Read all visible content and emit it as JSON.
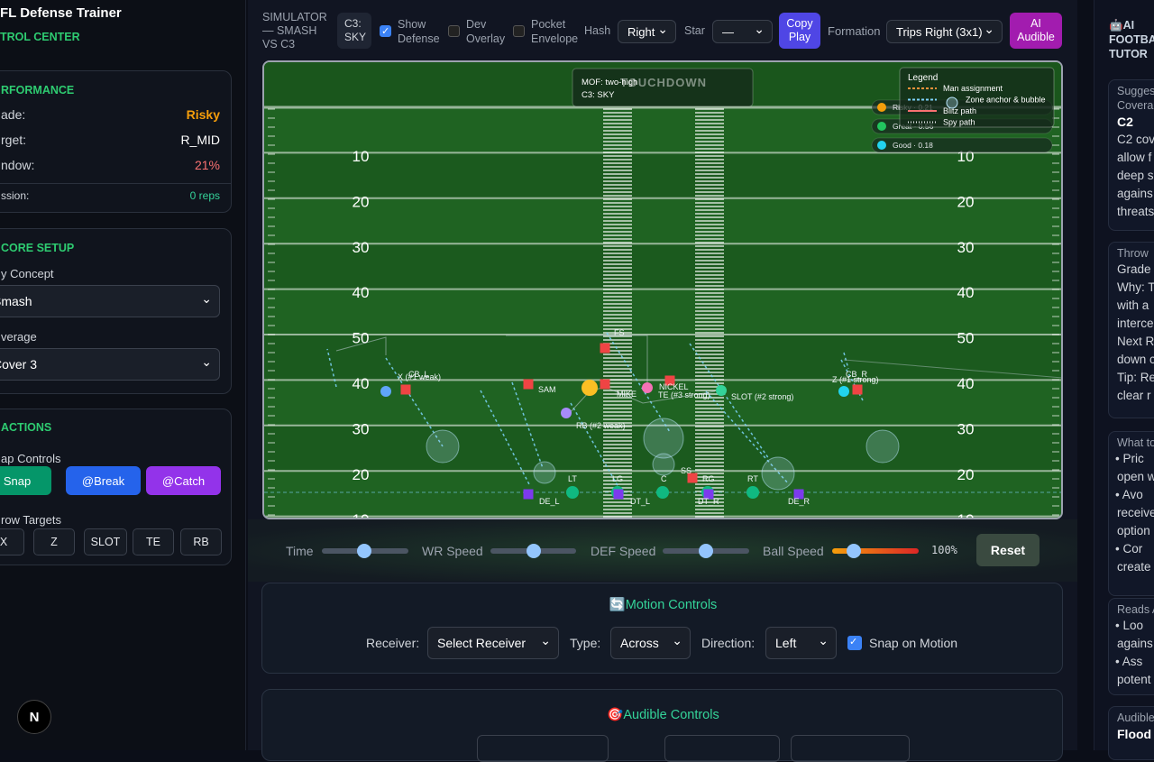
{
  "sidebar": {
    "title": "FL Defense Trainer",
    "subtitle": "TROL CENTER",
    "performance": {
      "heading": "RFORMANCE",
      "rows": [
        {
          "label": "ade:",
          "value": "Risky",
          "color": "#f59e0b"
        },
        {
          "label": "rget:",
          "value": "R_MID",
          "color": "#ffffff"
        },
        {
          "label": "ndow:",
          "value": "21%",
          "color": "#f87171"
        },
        {
          "label": "ssion:",
          "value": "0 reps",
          "color": "#34d399"
        }
      ]
    },
    "setup": {
      "heading": "CORE SETUP",
      "concept_label": "y Concept",
      "concept": "Smash",
      "coverage_label": "verage",
      "coverage": "Cover 3"
    },
    "actions": {
      "heading": "ACTIONS",
      "snap_label": "ap Controls",
      "buttons": [
        {
          "label": "Snap",
          "color": "#059669"
        },
        {
          "label": "@Break",
          "color": "#2563eb"
        },
        {
          "label": "@Catch",
          "color": "#9333ea"
        }
      ],
      "targets_label": "row Targets",
      "targets": [
        "X",
        "Z",
        "SLOT",
        "TE",
        "RB"
      ]
    },
    "badge": "N"
  },
  "toolbar": {
    "title": "SIMULATOR — SMASH VS C3",
    "shell": "C3: SKY",
    "toggles": [
      {
        "label": "Show Defense",
        "checked": true
      },
      {
        "label": "Dev Overlay",
        "checked": false
      },
      {
        "label": "Pocket Envelope",
        "checked": false
      }
    ],
    "hash_label": "Hash",
    "hash": "Right",
    "star_label": "Star",
    "star": "—",
    "copy": "Copy Play",
    "formation_label": "Formation",
    "formation": "Trips Right (3x1)",
    "audible": "AI Audible"
  },
  "field": {
    "end_zone": "TOUCHDOWN",
    "info": [
      "MOF: two-high",
      "C3: SKY"
    ],
    "yard_numbers": [
      10,
      20,
      30,
      40,
      50,
      40,
      30,
      20,
      10
    ],
    "legend": {
      "title": "Legend",
      "items": [
        {
          "label": "Man assignment",
          "color": "#fb923c",
          "dash": "3 2"
        },
        {
          "label": "Zone anchor & bubble",
          "color": "#7dd3fc",
          "dash": "3 2"
        },
        {
          "label": "Blitz path",
          "color": "#f87171",
          "dash": ""
        },
        {
          "label": "Spy path",
          "color": "#e5e7eb",
          "dash": "1 2"
        }
      ]
    },
    "grades": [
      {
        "label": "Risky · 0.21",
        "color": "#f59e0b"
      },
      {
        "label": "Great · 0.56",
        "color": "#22c55e"
      },
      {
        "label": "Good · 0.18",
        "color": "#22d3ee"
      }
    ],
    "players": [
      {
        "label": "X (#1 weak)",
        "color": "#60a5fa",
        "shape": "circle"
      },
      {
        "label": "CB_L",
        "color": "#ef4444",
        "shape": "square"
      },
      {
        "label": "SAM",
        "color": "#ef4444",
        "shape": "square"
      },
      {
        "label": "FS",
        "color": "#ef4444",
        "shape": "square"
      },
      {
        "label": "MIKE",
        "color": "#ef4444",
        "shape": "square"
      },
      {
        "label": "NICKEL",
        "color": "#ef4444",
        "shape": "square"
      },
      {
        "label": "TE (#3 strong)",
        "color": "#f472b6",
        "shape": "circle"
      },
      {
        "label": "SLOT (#2 strong)",
        "color": "#34d399",
        "shape": "circle"
      },
      {
        "label": "Z (#1 strong)",
        "color": "#22d3ee",
        "shape": "circle"
      },
      {
        "label": "CB_R",
        "color": "#ef4444",
        "shape": "square"
      },
      {
        "label": "RB (#2 weak)",
        "color": "#a78bfa",
        "shape": "circle"
      },
      {
        "label": "SS",
        "color": "#ef4444",
        "shape": "square"
      },
      {
        "label": "LT",
        "color": "#10b981",
        "shape": "circle"
      },
      {
        "label": "LG",
        "color": "#10b981",
        "shape": "circle"
      },
      {
        "label": "C",
        "color": "#10b981",
        "shape": "circle"
      },
      {
        "label": "RG",
        "color": "#10b981",
        "shape": "circle"
      },
      {
        "label": "RT",
        "color": "#10b981",
        "shape": "circle"
      },
      {
        "label": "DE_L",
        "color": "#7c3aed",
        "shape": "square"
      },
      {
        "label": "DT_L",
        "color": "#7c3aed",
        "shape": "square"
      },
      {
        "label": "DT_R",
        "color": "#7c3aed",
        "shape": "square"
      },
      {
        "label": "DE_R",
        "color": "#7c3aed",
        "shape": "square"
      }
    ]
  },
  "sliders": {
    "items": [
      "Time",
      "WR Speed",
      "DEF Speed",
      "Ball Speed"
    ],
    "ball_speed": "100%",
    "reset": "Reset"
  },
  "motion": {
    "icon": "🔄",
    "heading": "Motion Controls",
    "receiver_label": "Receiver:",
    "receiver": "Select Receiver",
    "type_label": "Type:",
    "type": "Across",
    "direction_label": "Direction:",
    "direction": "Left",
    "snap": "Snap on Motion"
  },
  "audible": {
    "icon": "🎯",
    "heading": "Audible Controls"
  },
  "tutor": {
    "icon": "🤖",
    "title": [
      "AI",
      "FOOTBA",
      "TUTOR"
    ],
    "cards": [
      {
        "lines": [
          "Sugges",
          "Covera"
        ],
        "strong": "C2",
        "body": [
          "C2 cov",
          "allow f",
          "deep s",
          "agains",
          "threats"
        ]
      },
      {
        "lines": [
          "Throw"
        ],
        "body": [
          "Grade",
          "Why: T",
          "with a",
          "interce",
          "Next R",
          "down c",
          "Tip: Re",
          "clear r"
        ]
      },
      {
        "lines": [
          "What to"
        ],
        "bullets": [
          [
            "Pric",
            "open w"
          ],
          [
            "Avo",
            "receive",
            "option"
          ],
          [
            "Cor",
            "create"
          ]
        ]
      },
      {
        "lines": [
          "Reads A"
        ],
        "bullets": [
          [
            "Loo",
            "agains"
          ],
          [
            "Ass",
            "potent"
          ]
        ]
      },
      {
        "lines": [
          "Audible"
        ],
        "strong": "Flood"
      }
    ]
  }
}
